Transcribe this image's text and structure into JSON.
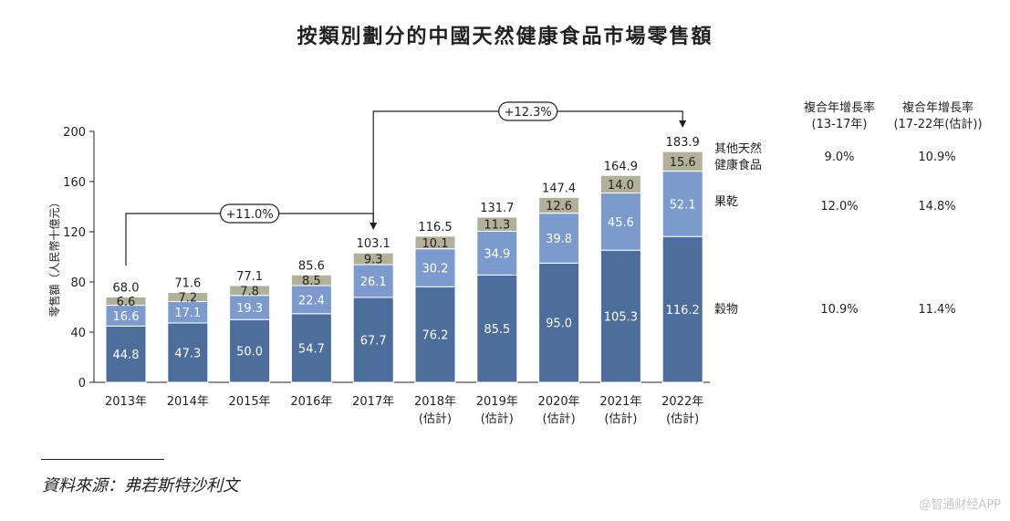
{
  "title": "按類別劃分的中國天然健康食品市場零售額",
  "source": "資料來源：弗若斯特沙利文",
  "watermark": "@智通财经APP",
  "colors": {
    "grains": "#4d6d9a",
    "dried_fruit": "#7c9bcc",
    "other": "#b1b19a",
    "axis": "#231f20"
  },
  "chart_data": {
    "type": "stacked-bar",
    "title": "按類別劃分的中國天然健康食品市場零售額",
    "ylabel": "零售額（人民幣十億元）",
    "ylim": [
      0,
      200
    ],
    "yticks": [
      "0",
      "40",
      "80",
      "120",
      "160",
      "200"
    ],
    "categories": [
      "2013年",
      "2014年",
      "2015年",
      "2016年",
      "2017年",
      "2018年",
      "2019年",
      "2020年",
      "2021年",
      "2022年"
    ],
    "category_sublabels": [
      "",
      "",
      "",
      "",
      "",
      "(估計)",
      "(估計)",
      "(估計)",
      "(估計)",
      "(估計)"
    ],
    "series": [
      {
        "name": "穀物",
        "values": [
          44.8,
          47.3,
          50.0,
          54.7,
          67.7,
          76.2,
          85.5,
          95.0,
          105.3,
          116.2
        ],
        "labels": [
          "44.8",
          "47.3",
          "50.0",
          "54.7",
          "67.7",
          "76.2",
          "85.5",
          "95.0",
          "105.3",
          "116.2"
        ]
      },
      {
        "name": "果乾",
        "values": [
          16.6,
          17.1,
          19.3,
          22.4,
          26.1,
          30.2,
          34.9,
          39.8,
          45.6,
          52.1
        ],
        "labels": [
          "16.6",
          "17.1",
          "19.3",
          "22.4",
          "26.1",
          "30.2",
          "34.9",
          "39.8",
          "45.6",
          "52.1"
        ]
      },
      {
        "name": "其他天然健康食品",
        "values": [
          6.6,
          7.2,
          7.8,
          8.5,
          9.3,
          10.1,
          11.3,
          12.6,
          14.0,
          15.6
        ],
        "labels": [
          "6.6",
          "7.2",
          "7.8",
          "8.5",
          "9.3",
          "10.1",
          "11.3",
          "12.6",
          "14.0",
          "15.6"
        ]
      }
    ],
    "totals": [
      "68.0",
      "71.6",
      "77.1",
      "85.6",
      "103.1",
      "116.5",
      "131.7",
      "147.4",
      "164.9",
      "183.9"
    ],
    "annotations": [
      {
        "text": "+11.0%",
        "from": "2013年",
        "to": "2017年"
      },
      {
        "text": "+12.3%",
        "from": "2017年",
        "to": "2022年"
      }
    ]
  },
  "legend": {
    "other_line1": "其他天然",
    "other_line2": "健康食品",
    "dried_fruit": "果乾",
    "grains": "穀物"
  },
  "cagr_table": {
    "header_a_line1": "複合年增長率",
    "header_a_line2": "(13-17年)",
    "header_b_line1": "複合年增長率",
    "header_b_line2": "(17-22年(估計))",
    "other_a": "9.0%",
    "other_b": "10.9%",
    "dried_fruit_a": "12.0%",
    "dried_fruit_b": "14.8%",
    "grains_a": "10.9%",
    "grains_b": "11.4%"
  }
}
